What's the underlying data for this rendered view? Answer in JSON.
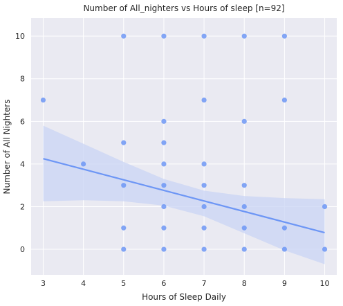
{
  "chart_data": {
    "type": "scatter",
    "title": "Number of All_nighters vs Hours of sleep [n=92]",
    "xlabel": "Hours of Sleep Daily",
    "ylabel": "Number of All Nighters",
    "xlim": [
      2.7,
      10.3
    ],
    "ylim": [
      -1.2,
      10.85
    ],
    "xticks": [
      3,
      4,
      5,
      6,
      7,
      8,
      9,
      10
    ],
    "yticks": [
      0,
      2,
      4,
      6,
      8,
      10
    ],
    "grid": true,
    "point_color": "#6d96f5",
    "line_color": "#6d96f5",
    "band_color": "#c9d4f4",
    "background_color": "#eaeaf2",
    "points": [
      {
        "x": 3,
        "y": 7
      },
      {
        "x": 4,
        "y": 4
      },
      {
        "x": 5,
        "y": 10
      },
      {
        "x": 5,
        "y": 5
      },
      {
        "x": 5,
        "y": 3
      },
      {
        "x": 5,
        "y": 1
      },
      {
        "x": 5,
        "y": 0
      },
      {
        "x": 6,
        "y": 10
      },
      {
        "x": 6,
        "y": 6
      },
      {
        "x": 6,
        "y": 5
      },
      {
        "x": 6,
        "y": 4
      },
      {
        "x": 6,
        "y": 3
      },
      {
        "x": 6,
        "y": 2
      },
      {
        "x": 6,
        "y": 1
      },
      {
        "x": 6,
        "y": 0
      },
      {
        "x": 7,
        "y": 10
      },
      {
        "x": 7,
        "y": 7
      },
      {
        "x": 7,
        "y": 4
      },
      {
        "x": 7,
        "y": 3
      },
      {
        "x": 7,
        "y": 2
      },
      {
        "x": 7,
        "y": 1
      },
      {
        "x": 7,
        "y": 0
      },
      {
        "x": 8,
        "y": 10
      },
      {
        "x": 8,
        "y": 6
      },
      {
        "x": 8,
        "y": 3
      },
      {
        "x": 8,
        "y": 2
      },
      {
        "x": 8,
        "y": 1
      },
      {
        "x": 8,
        "y": 0
      },
      {
        "x": 9,
        "y": 10
      },
      {
        "x": 9,
        "y": 7
      },
      {
        "x": 9,
        "y": 1
      },
      {
        "x": 9,
        "y": 0
      },
      {
        "x": 10,
        "y": 2
      },
      {
        "x": 10,
        "y": 0
      }
    ],
    "regression_line": [
      {
        "x": 3,
        "y": 4.25
      },
      {
        "x": 10,
        "y": 0.78
      }
    ],
    "confidence_band": {
      "upper": [
        {
          "x": 3,
          "y": 5.8
        },
        {
          "x": 4,
          "y": 4.95
        },
        {
          "x": 5,
          "y": 4.1
        },
        {
          "x": 6,
          "y": 3.3
        },
        {
          "x": 7,
          "y": 2.75
        },
        {
          "x": 8,
          "y": 2.5
        },
        {
          "x": 9,
          "y": 2.4
        },
        {
          "x": 10,
          "y": 2.35
        }
      ],
      "lower": [
        {
          "x": 3,
          "y": 2.25
        },
        {
          "x": 4,
          "y": 2.3
        },
        {
          "x": 5,
          "y": 2.25
        },
        {
          "x": 6,
          "y": 2.05
        },
        {
          "x": 7,
          "y": 1.55
        },
        {
          "x": 8,
          "y": 0.75
        },
        {
          "x": 9,
          "y": -0.05
        },
        {
          "x": 10,
          "y": -0.7
        }
      ]
    }
  }
}
